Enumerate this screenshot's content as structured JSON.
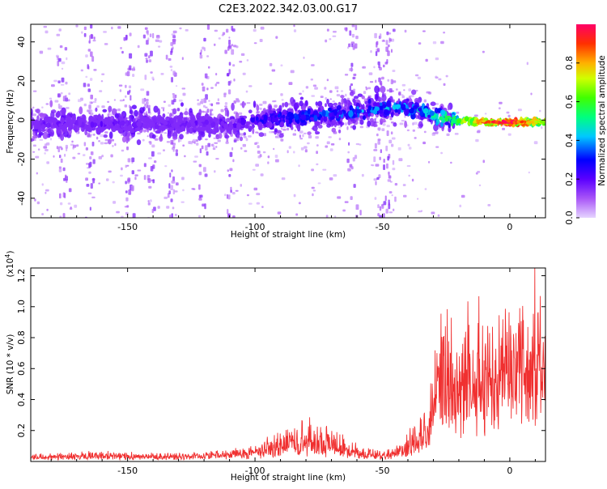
{
  "title": "C2E3.2022.342.03.00.G17",
  "chart_data": [
    {
      "type": "heatmap",
      "xlabel": "Height of straight line (km)",
      "ylabel": "Frequency (Hz)",
      "xlim": [
        -188,
        14
      ],
      "ylim": [
        -50,
        49
      ],
      "xticks": [
        -150,
        -100,
        -50,
        0
      ],
      "yticks": [
        -40,
        -20,
        0,
        20,
        40
      ],
      "colorbar": {
        "label": "Normalized spectral amplitude",
        "range": [
          0,
          1
        ],
        "ticks": [
          "0.0",
          "0.2",
          "0.4",
          "0.6",
          "0.8"
        ],
        "colors": [
          "#e6d4ff",
          "#a855f7",
          "#5b00ff",
          "#0000ff",
          "#00c8ff",
          "#00ff7f",
          "#40ff00",
          "#d0ff00",
          "#ffb000",
          "#ff3000",
          "#ff0066"
        ]
      },
      "ridge": {
        "x": [
          -188,
          -160,
          -130,
          -110,
          -90,
          -70,
          -50,
          -35,
          -22,
          -10,
          0,
          14
        ],
        "frequency": [
          -2,
          -2,
          -2,
          -2,
          1,
          3,
          6,
          5,
          0,
          -1,
          -1,
          -1
        ],
        "amplitude": [
          0.18,
          0.2,
          0.2,
          0.22,
          0.35,
          0.38,
          0.42,
          0.45,
          0.6,
          0.9,
          1.0,
          0.7
        ]
      }
    },
    {
      "type": "line",
      "xlabel": "Height of straight line (km)",
      "ylabel": "SNR (10 * v/v)",
      "yscale_label": "(x10",
      "yscale_exp": "4",
      "yscale_close": ")",
      "xlim": [
        -188,
        14
      ],
      "ylim": [
        0,
        1.25
      ],
      "xticks": [
        -150,
        -100,
        -50,
        0
      ],
      "yticks": [
        "0.2",
        "0.4",
        "0.6",
        "0.8",
        "1.0",
        "1.2"
      ],
      "color": "#f03030",
      "envelope": {
        "x": [
          -188,
          -160,
          -130,
          -110,
          -100,
          -90,
          -80,
          -70,
          -60,
          -50,
          -45,
          -38,
          -32,
          -26,
          -22,
          -15,
          -8,
          -4,
          0,
          5,
          10,
          14
        ],
        "baseline": [
          0.03,
          0.03,
          0.03,
          0.04,
          0.05,
          0.08,
          0.1,
          0.08,
          0.05,
          0.03,
          0.05,
          0.1,
          0.2,
          0.35,
          0.4,
          0.45,
          0.5,
          0.6,
          0.68,
          0.7,
          0.65,
          0.6
        ],
        "peak": [
          0.05,
          0.07,
          0.05,
          0.08,
          0.12,
          0.2,
          0.3,
          0.24,
          0.12,
          0.06,
          0.1,
          0.25,
          0.45,
          1.1,
          0.9,
          1.08,
          0.9,
          1.0,
          0.95,
          1.0,
          1.15,
          1.0
        ]
      }
    }
  ]
}
